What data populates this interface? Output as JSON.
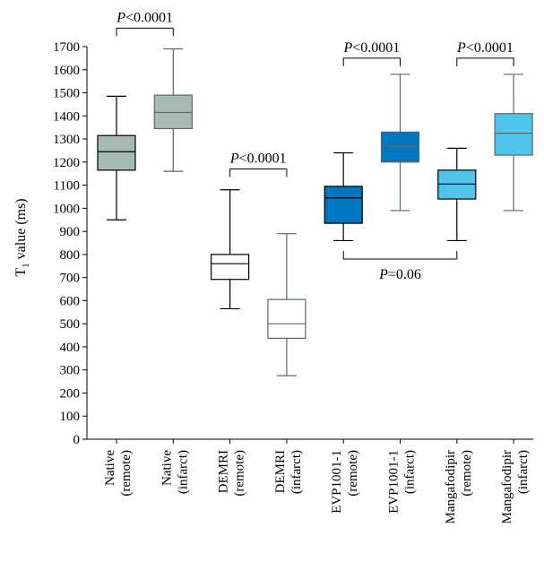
{
  "chart_data": {
    "type": "box",
    "ylabel": "T",
    "ylabel_sub": "1",
    "ylabel_rest": " value (ms)",
    "ylim": [
      0,
      1700
    ],
    "yticks": [
      0,
      100,
      200,
      300,
      400,
      500,
      600,
      700,
      800,
      900,
      1000,
      1100,
      1200,
      1300,
      1400,
      1500,
      1600,
      1700
    ],
    "groups": [
      {
        "label1": "Native",
        "label2": "(remote)",
        "min": 950,
        "q1": 1165,
        "median": 1245,
        "q3": 1315,
        "max": 1485,
        "fill": "#a7bab6",
        "stroke": "#000000",
        "median_color": "#000000"
      },
      {
        "label1": "Native",
        "label2": "(infarct)",
        "min": 1160,
        "q1": 1345,
        "median": 1415,
        "q3": 1490,
        "max": 1690,
        "fill": "#a7bab6",
        "stroke": "#5a6a66",
        "median_color": "#5a6a66"
      },
      {
        "label1": "DEMRI",
        "label2": "(remote)",
        "min": 565,
        "q1": 692,
        "median": 760,
        "q3": 800,
        "max": 1080,
        "fill": "#ffffff",
        "stroke": "#000000",
        "median_color": "#000000"
      },
      {
        "label1": "DEMRI",
        "label2": "(infarct)",
        "min": 275,
        "q1": 437,
        "median": 500,
        "q3": 605,
        "max": 890,
        "fill": "#ffffff",
        "stroke": "#5a6a66",
        "median_color": "#5a6a66"
      },
      {
        "label1": "EVP1001-1",
        "label2": "(remote)",
        "min": 860,
        "q1": 935,
        "median": 1045,
        "q3": 1095,
        "max": 1240,
        "fill": "#0077c0",
        "stroke": "#000000",
        "median_color": "#000000"
      },
      {
        "label1": "EVP1001-1",
        "label2": "(infarct)",
        "min": 990,
        "q1": 1200,
        "median": 1270,
        "q3": 1330,
        "max": 1580,
        "fill": "#0077c0",
        "stroke": "#5a6a66",
        "median_color": "#5a6a66"
      },
      {
        "label1": "Mangafodipir",
        "label2": "(remote)",
        "min": 860,
        "q1": 1040,
        "median": 1105,
        "q3": 1165,
        "max": 1260,
        "fill": "#4fc3ec",
        "stroke": "#000000",
        "median_color": "#000000"
      },
      {
        "label1": "Mangafodipir",
        "label2": "(infarct)",
        "min": 990,
        "q1": 1230,
        "median": 1325,
        "q3": 1410,
        "max": 1580,
        "fill": "#4fc3ec",
        "stroke": "#5a6a66",
        "median_color": "#5a6a66"
      }
    ],
    "annotations": [
      {
        "from": 0,
        "to": 1,
        "y": 1780,
        "side": "above",
        "italic": "P",
        "rest": "<0.0001"
      },
      {
        "from": 2,
        "to": 3,
        "y": 1170,
        "side": "above",
        "italic": "P",
        "rest": "<0.0001"
      },
      {
        "from": 4,
        "to": 5,
        "y": 1650,
        "side": "above",
        "italic": "P",
        "rest": "<0.0001"
      },
      {
        "from": 6,
        "to": 7,
        "y": 1650,
        "side": "above",
        "italic": "P",
        "rest": "<0.0001"
      },
      {
        "from": 4,
        "to": 6,
        "y": 780,
        "side": "below",
        "italic": "P",
        "rest": "=0.06"
      }
    ]
  }
}
